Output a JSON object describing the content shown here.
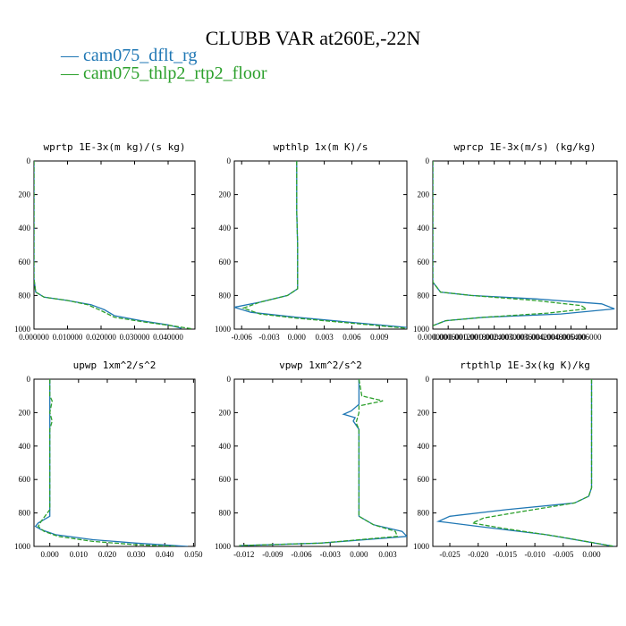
{
  "title": "CLUBB VAR at260E,-22N",
  "legend": [
    {
      "label": "cam075_dflt_rg",
      "color": "#1f77b4"
    },
    {
      "label": "cam075_thlp2_rtp2_floor",
      "color": "#2ca02c"
    }
  ],
  "chart_data": [
    {
      "type": "line",
      "title": "wprtp  1E-3x(m kg)/(s kg)",
      "xlim": [
        0,
        0.048
      ],
      "ylim": [
        1000,
        0
      ],
      "inverted_y": true,
      "xticks": [
        0,
        0.01,
        0.02,
        0.03,
        0.04
      ],
      "xtick_labels": [
        "0.000000",
        "0.010000",
        "0.020000",
        "0.030000",
        "0.040000"
      ],
      "yticks": [
        0,
        200,
        400,
        600,
        800,
        1000
      ],
      "series": [
        {
          "name": "cam075_dflt_rg",
          "style": "solid",
          "x": [
            0,
            0,
            0.0005,
            0.003,
            0.01,
            0.017,
            0.021,
            0.024,
            0.032,
            0.04,
            0.044
          ],
          "y": [
            0,
            700,
            780,
            810,
            830,
            855,
            885,
            920,
            950,
            975,
            995
          ]
        },
        {
          "name": "cam075_thlp2_rtp2_floor",
          "style": "dashed",
          "x": [
            0,
            0,
            0.0005,
            0.003,
            0.01,
            0.016,
            0.02,
            0.024,
            0.033,
            0.041,
            0.047
          ],
          "y": [
            0,
            700,
            780,
            810,
            830,
            855,
            890,
            930,
            958,
            980,
            998
          ]
        }
      ]
    },
    {
      "type": "line",
      "title": "wpthlp  1x(m K)/s",
      "xlim": [
        -0.0068,
        0.012
      ],
      "ylim": [
        1000,
        0
      ],
      "inverted_y": true,
      "xticks": [
        -0.006,
        -0.003,
        0,
        0.003,
        0.006,
        0.009
      ],
      "xtick_labels": [
        "-0.006",
        "-0.003",
        "0.000",
        "0.003",
        "0.006",
        "0.009"
      ],
      "yticks": [
        0,
        200,
        400,
        600,
        800,
        1000
      ],
      "series": [
        {
          "name": "cam075_dflt_rg",
          "style": "solid",
          "x": [
            0,
            0,
            0,
            0.0001,
            0.0001,
            0.0001,
            -0.001,
            -0.004,
            -0.0068,
            -0.005,
            0,
            0.006,
            0.012
          ],
          "y": [
            0,
            110,
            300,
            500,
            700,
            760,
            800,
            840,
            870,
            900,
            930,
            960,
            990
          ]
        },
        {
          "name": "cam075_thlp2_rtp2_floor",
          "style": "dashed",
          "x": [
            0,
            0,
            0,
            0.0001,
            0.0001,
            0.0001,
            -0.001,
            -0.004,
            -0.0058,
            -0.004,
            0,
            0.006,
            0.012
          ],
          "y": [
            0,
            110,
            300,
            500,
            700,
            760,
            800,
            840,
            875,
            910,
            935,
            965,
            995
          ]
        }
      ]
    },
    {
      "type": "line",
      "title": "wprcp  1E-3x(m/s) (kg/kg)",
      "xlim": [
        0,
        0.0072
      ],
      "ylim": [
        1000,
        0
      ],
      "inverted_y": true,
      "xticks": [
        0.0,
        0.0006,
        0.0012,
        0.0018,
        0.0024,
        0.003,
        0.0036,
        0.0042,
        0.0048,
        0.0054,
        0.006
      ],
      "xtick_labels": [
        "0.000000",
        "0.000600",
        "0.001200",
        "0.001800",
        "0.002400",
        "0.003000",
        "0.003600",
        "0.004200",
        "0.004800",
        "0.005400",
        "0.006000"
      ],
      "yticks": [
        0,
        200,
        400,
        600,
        800,
        1000
      ],
      "series": [
        {
          "name": "cam075_dflt_rg",
          "style": "solid",
          "x": [
            0,
            0,
            0.0003,
            0.0015,
            0.004,
            0.0066,
            0.0071,
            0.005,
            0.002,
            0.0005,
            0
          ],
          "y": [
            0,
            720,
            780,
            800,
            820,
            850,
            880,
            910,
            930,
            950,
            980
          ]
        },
        {
          "name": "cam075_thlp2_rtp2_floor",
          "style": "dashed",
          "x": [
            0,
            0,
            0.0003,
            0.0015,
            0.004,
            0.0058,
            0.006,
            0.0045,
            0.002,
            0.0005,
            0
          ],
          "y": [
            0,
            720,
            780,
            800,
            830,
            860,
            880,
            905,
            930,
            950,
            980
          ]
        }
      ]
    },
    {
      "type": "line",
      "title": "upwp  1xm^2/s^2",
      "xlim": [
        -0.0055,
        0.0505
      ],
      "ylim": [
        1000,
        0
      ],
      "inverted_y": true,
      "xticks": [
        0,
        0.01,
        0.02,
        0.03,
        0.04,
        0.05
      ],
      "xtick_labels": [
        "0.000",
        "0.010",
        "0.020",
        "0.030",
        "0.040",
        "0.050"
      ],
      "yticks": [
        0,
        200,
        400,
        600,
        800,
        1000
      ],
      "series": [
        {
          "name": "cam075_dflt_rg",
          "style": "solid",
          "x": [
            0,
            0,
            0,
            0,
            0,
            -0.004,
            -0.005,
            -0.003,
            0.002,
            0.015,
            0.03,
            0.048
          ],
          "y": [
            0,
            300,
            600,
            780,
            820,
            860,
            880,
            900,
            930,
            960,
            980,
            1000
          ]
        },
        {
          "name": "cam075_thlp2_rtp2_floor",
          "style": "dashed",
          "x": [
            0,
            0,
            0.0008,
            0,
            0.0008,
            0,
            0,
            -0.003,
            -0.004,
            -0.002,
            0.003,
            0.015,
            0.03,
            0.044
          ],
          "y": [
            0,
            100,
            130,
            200,
            250,
            300,
            780,
            850,
            880,
            910,
            940,
            970,
            990,
            1000
          ]
        }
      ]
    },
    {
      "type": "line",
      "title": "vpwp  1xm^2/s^2",
      "xlim": [
        -0.013,
        0.005
      ],
      "ylim": [
        1000,
        0
      ],
      "inverted_y": true,
      "xticks": [
        -0.012,
        -0.009,
        -0.006,
        -0.003,
        0,
        0.003
      ],
      "xtick_labels": [
        "-0.012",
        "-0.009",
        "-0.006",
        "-0.003",
        "0.000",
        "0.003"
      ],
      "yticks": [
        0,
        200,
        400,
        600,
        800,
        1000
      ],
      "series": [
        {
          "name": "cam075_dflt_rg",
          "style": "solid",
          "x": [
            0,
            0,
            -0.0008,
            -0.0016,
            -0.0004,
            -0.0006,
            0,
            0,
            0,
            0.0015,
            0.0045,
            0.005,
            -0.004,
            -0.0125
          ],
          "y": [
            0,
            150,
            190,
            210,
            230,
            250,
            300,
            600,
            820,
            870,
            910,
            940,
            980,
            995
          ]
        },
        {
          "name": "cam075_thlp2_rtp2_floor",
          "style": "dashed",
          "x": [
            0,
            0.0003,
            0.0025,
            0,
            0,
            -0.0003,
            0,
            0,
            0,
            0.0015,
            0.0038,
            0.004,
            -0.004,
            -0.0125
          ],
          "y": [
            0,
            100,
            130,
            160,
            200,
            260,
            300,
            600,
            820,
            870,
            910,
            940,
            980,
            995
          ]
        }
      ]
    },
    {
      "type": "line",
      "title": "rtpthlp  1E-3x(kg K)/kg",
      "xlim": [
        -0.028,
        0.0045
      ],
      "ylim": [
        1000,
        0
      ],
      "inverted_y": true,
      "xticks": [
        -0.025,
        -0.02,
        -0.015,
        -0.01,
        -0.005,
        0
      ],
      "xtick_labels": [
        "-0.025",
        "-0.020",
        "-0.015",
        "-0.010",
        "-0.005",
        "0.000"
      ],
      "yticks": [
        0,
        200,
        400,
        600,
        800,
        1000
      ],
      "series": [
        {
          "name": "cam075_dflt_rg",
          "style": "solid",
          "x": [
            0,
            0,
            -0.0005,
            -0.003,
            -0.015,
            -0.025,
            -0.027,
            -0.02,
            -0.008,
            0.004
          ],
          "y": [
            0,
            650,
            700,
            740,
            780,
            820,
            850,
            880,
            930,
            1000
          ]
        },
        {
          "name": "cam075_thlp2_rtp2_floor",
          "style": "dashed",
          "x": [
            0,
            0,
            -0.0005,
            -0.003,
            -0.012,
            -0.019,
            -0.021,
            -0.016,
            -0.006,
            0.004
          ],
          "y": [
            0,
            650,
            700,
            740,
            790,
            830,
            860,
            890,
            940,
            1000
          ]
        }
      ]
    }
  ]
}
